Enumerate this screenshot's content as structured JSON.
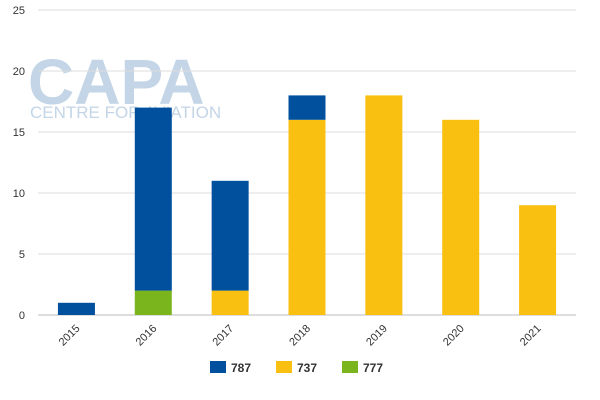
{
  "watermark": {
    "logo_text": "CAPA",
    "subtitle": "CENTRE FOR AVIATION",
    "color": "#c3d5e6"
  },
  "chart_data": {
    "type": "bar",
    "stacked": true,
    "categories": [
      "2015",
      "2016",
      "2017",
      "2018",
      "2019",
      "2020",
      "2021"
    ],
    "series": [
      {
        "name": "787",
        "color": "#00509d",
        "values": [
          1,
          15,
          9,
          2,
          0,
          0,
          0
        ]
      },
      {
        "name": "737",
        "color": "#f9c011",
        "values": [
          0,
          0,
          2,
          16,
          18,
          16,
          9
        ]
      },
      {
        "name": "777",
        "color": "#7ab51d",
        "values": [
          0,
          2,
          0,
          0,
          0,
          0,
          0
        ]
      }
    ],
    "stack_order": [
      "777",
      "737",
      "787"
    ],
    "ylim": [
      0,
      25
    ],
    "yticks": [
      "0",
      "5",
      "10",
      "15",
      "20",
      "25"
    ],
    "grid": true,
    "legend_position": "bottom"
  }
}
